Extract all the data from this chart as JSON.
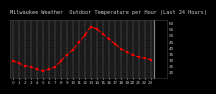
{
  "title": "Milwaukee Weather  Outdoor Temperature per Hour (Last 24 Hours)",
  "hours": [
    0,
    1,
    2,
    3,
    4,
    5,
    6,
    7,
    8,
    9,
    10,
    11,
    12,
    13,
    14,
    15,
    16,
    17,
    18,
    19,
    20,
    21,
    22,
    23
  ],
  "temps": [
    29,
    27,
    25,
    24,
    22,
    21,
    22,
    24,
    29,
    34,
    38,
    44,
    50,
    57,
    55,
    51,
    47,
    43,
    39,
    36,
    34,
    32,
    31,
    30
  ],
  "line_color": "#ff0000",
  "marker": "s",
  "marker_size": 1.8,
  "line_style": "--",
  "line_width": 0.8,
  "bg_color": "#000000",
  "plot_bg_color": "#1a1a1a",
  "grid_color": "#ffffff",
  "title_color": "#cccccc",
  "tick_label_color": "#cccccc",
  "right_bar_color": "#000000",
  "ylim": [
    15,
    62
  ],
  "yticks": [
    20,
    25,
    30,
    35,
    40,
    45,
    50,
    55,
    60
  ],
  "title_fontsize": 3.8,
  "tick_fontsize": 3.0,
  "grid_alpha": 0.5
}
